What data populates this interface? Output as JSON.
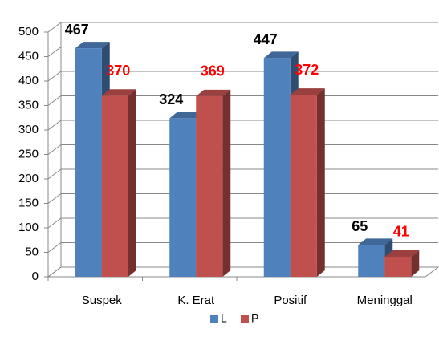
{
  "chart_data": {
    "type": "bar3d",
    "categories": [
      "Suspek",
      "K. Erat",
      "Positif",
      "Meninggal"
    ],
    "series": [
      {
        "name": "L",
        "color": "#4f81bd",
        "label_color": "#000000",
        "values": [
          467,
          324,
          447,
          65
        ]
      },
      {
        "name": "P",
        "color": "#c0504d",
        "label_color": "#ff0000",
        "values": [
          370,
          369,
          372,
          41
        ]
      }
    ],
    "ylim": [
      0,
      500
    ],
    "yticks": [
      0,
      50,
      100,
      150,
      200,
      250,
      300,
      350,
      400,
      450,
      500
    ],
    "grid": true,
    "legend": "bottom"
  }
}
